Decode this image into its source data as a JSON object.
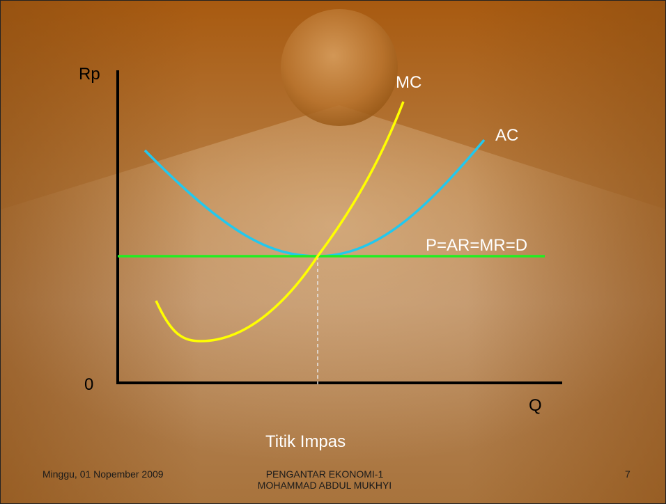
{
  "diagram": {
    "y_axis_label": "Rp",
    "x_axis_label": "Q",
    "origin_label": "0",
    "mc_label": "MC",
    "ac_label": "AC",
    "demand_label": "P=AR=MR=D",
    "caption": "Titik Impas"
  },
  "footer": {
    "date": "Minggu, 01 Nopember 2009",
    "course_line1": "PENGANTAR EKONOMI-1",
    "course_line2": "MOHAMMAD ABDUL MUKHYI",
    "page_number": "7"
  },
  "colors": {
    "mc": "#ffff00",
    "ac": "#22c8ee",
    "demand": "#22ee22",
    "axes": "#000000",
    "guide": "#e8e8e8"
  }
}
